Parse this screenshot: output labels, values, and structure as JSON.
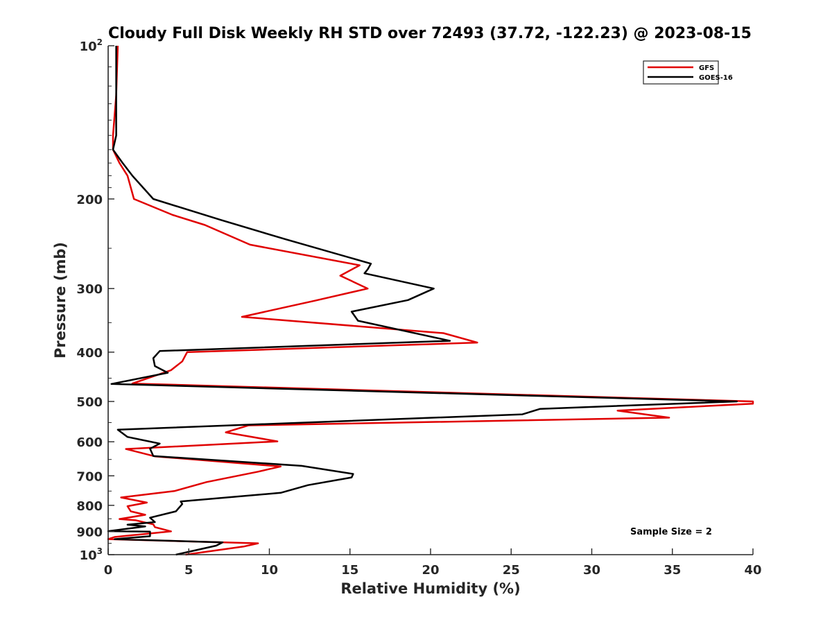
{
  "chart_data": {
    "type": "line",
    "title": "Cloudy Full Disk Weekly RH STD over 72493 (37.72, -122.23) @ 2023-08-15",
    "xlabel": "Relative Humidity (%)",
    "ylabel": "Pressure (mb)",
    "xlim": [
      0,
      40
    ],
    "ylim": [
      100,
      1000
    ],
    "y_scale": "log",
    "y_reversed": true,
    "grid": false,
    "legend_position": "top-right",
    "x_ticks": [
      0,
      5,
      10,
      15,
      20,
      25,
      30,
      35,
      40
    ],
    "y_ticks": [
      {
        "value": 100,
        "base": "10",
        "exp": "2"
      },
      {
        "value": 200,
        "label": "200"
      },
      {
        "value": 300,
        "label": "300"
      },
      {
        "value": 400,
        "label": "400"
      },
      {
        "value": 500,
        "label": "500"
      },
      {
        "value": 600,
        "label": "600"
      },
      {
        "value": 700,
        "label": "700"
      },
      {
        "value": 800,
        "label": "800"
      },
      {
        "value": 900,
        "label": "900"
      },
      {
        "value": 1000,
        "base": "10",
        "exp": "3"
      }
    ],
    "annotation": "Sample Size = 2",
    "series": [
      {
        "name": "GFS",
        "color": "#e00000",
        "points": [
          [
            0.6,
            100
          ],
          [
            0.5,
            125
          ],
          [
            0.3,
            150
          ],
          [
            0.3,
            160
          ],
          [
            0.7,
            170
          ],
          [
            1.2,
            180
          ],
          [
            1.6,
            200
          ],
          [
            4.0,
            215
          ],
          [
            6.0,
            225
          ],
          [
            8.8,
            246
          ],
          [
            15.6,
            270
          ],
          [
            14.4,
            283
          ],
          [
            16.1,
            300
          ],
          [
            12.8,
            317
          ],
          [
            8.3,
            341
          ],
          [
            20.8,
            367
          ],
          [
            22.9,
            383
          ],
          [
            4.9,
            400
          ],
          [
            4.6,
            417
          ],
          [
            3.9,
            434
          ],
          [
            1.5,
            461
          ],
          [
            40.0,
            500
          ],
          [
            40.0,
            505
          ],
          [
            31.6,
            521
          ],
          [
            34.8,
            538
          ],
          [
            8.7,
            557
          ],
          [
            7.3,
            575
          ],
          [
            10.5,
            599
          ],
          [
            1.1,
            620
          ],
          [
            2.9,
            641
          ],
          [
            10.7,
            671
          ],
          [
            9.3,
            687
          ],
          [
            6.1,
            720
          ],
          [
            4.1,
            750
          ],
          [
            0.8,
            772
          ],
          [
            2.4,
            790
          ],
          [
            1.2,
            803
          ],
          [
            1.4,
            822
          ],
          [
            2.3,
            835
          ],
          [
            0.7,
            851
          ],
          [
            1.7,
            856
          ],
          [
            2.8,
            872
          ],
          [
            2.9,
            883
          ],
          [
            3.9,
            900
          ],
          [
            0.4,
            923
          ],
          [
            0.0,
            932
          ],
          [
            9.3,
            950
          ],
          [
            8.4,
            964
          ],
          [
            4.8,
            1000
          ]
        ]
      },
      {
        "name": "GOES-16",
        "color": "#000000",
        "points": [
          [
            0.5,
            100
          ],
          [
            0.5,
            125
          ],
          [
            0.5,
            150
          ],
          [
            0.3,
            160
          ],
          [
            0.9,
            170
          ],
          [
            1.5,
            180
          ],
          [
            2.8,
            200
          ],
          [
            7.0,
            220
          ],
          [
            11.0,
            240
          ],
          [
            16.3,
            268
          ],
          [
            16.1,
            275
          ],
          [
            15.9,
            280
          ],
          [
            20.2,
            300
          ],
          [
            18.6,
            316
          ],
          [
            15.1,
            333
          ],
          [
            15.5,
            347
          ],
          [
            21.2,
            380
          ],
          [
            3.2,
            398
          ],
          [
            2.8,
            411
          ],
          [
            2.9,
            426
          ],
          [
            3.7,
            439
          ],
          [
            0.2,
            462
          ],
          [
            39.0,
            500
          ],
          [
            26.8,
            517
          ],
          [
            25.7,
            530
          ],
          [
            0.6,
            568
          ],
          [
            1.2,
            587
          ],
          [
            3.2,
            605
          ],
          [
            2.6,
            619
          ],
          [
            2.8,
            640
          ],
          [
            12.0,
            669
          ],
          [
            15.2,
            694
          ],
          [
            15.1,
            705
          ],
          [
            12.4,
            730
          ],
          [
            10.7,
            756
          ],
          [
            4.5,
            786
          ],
          [
            4.6,
            795
          ],
          [
            4.2,
            822
          ],
          [
            2.6,
            846
          ],
          [
            2.9,
            863
          ],
          [
            1.2,
            873
          ],
          [
            2.3,
            880
          ],
          [
            0.0,
            899
          ],
          [
            2.6,
            901
          ],
          [
            2.6,
            920
          ],
          [
            0.4,
            932
          ],
          [
            7.1,
            946
          ],
          [
            6.7,
            960
          ],
          [
            4.2,
            1000
          ]
        ]
      }
    ]
  }
}
